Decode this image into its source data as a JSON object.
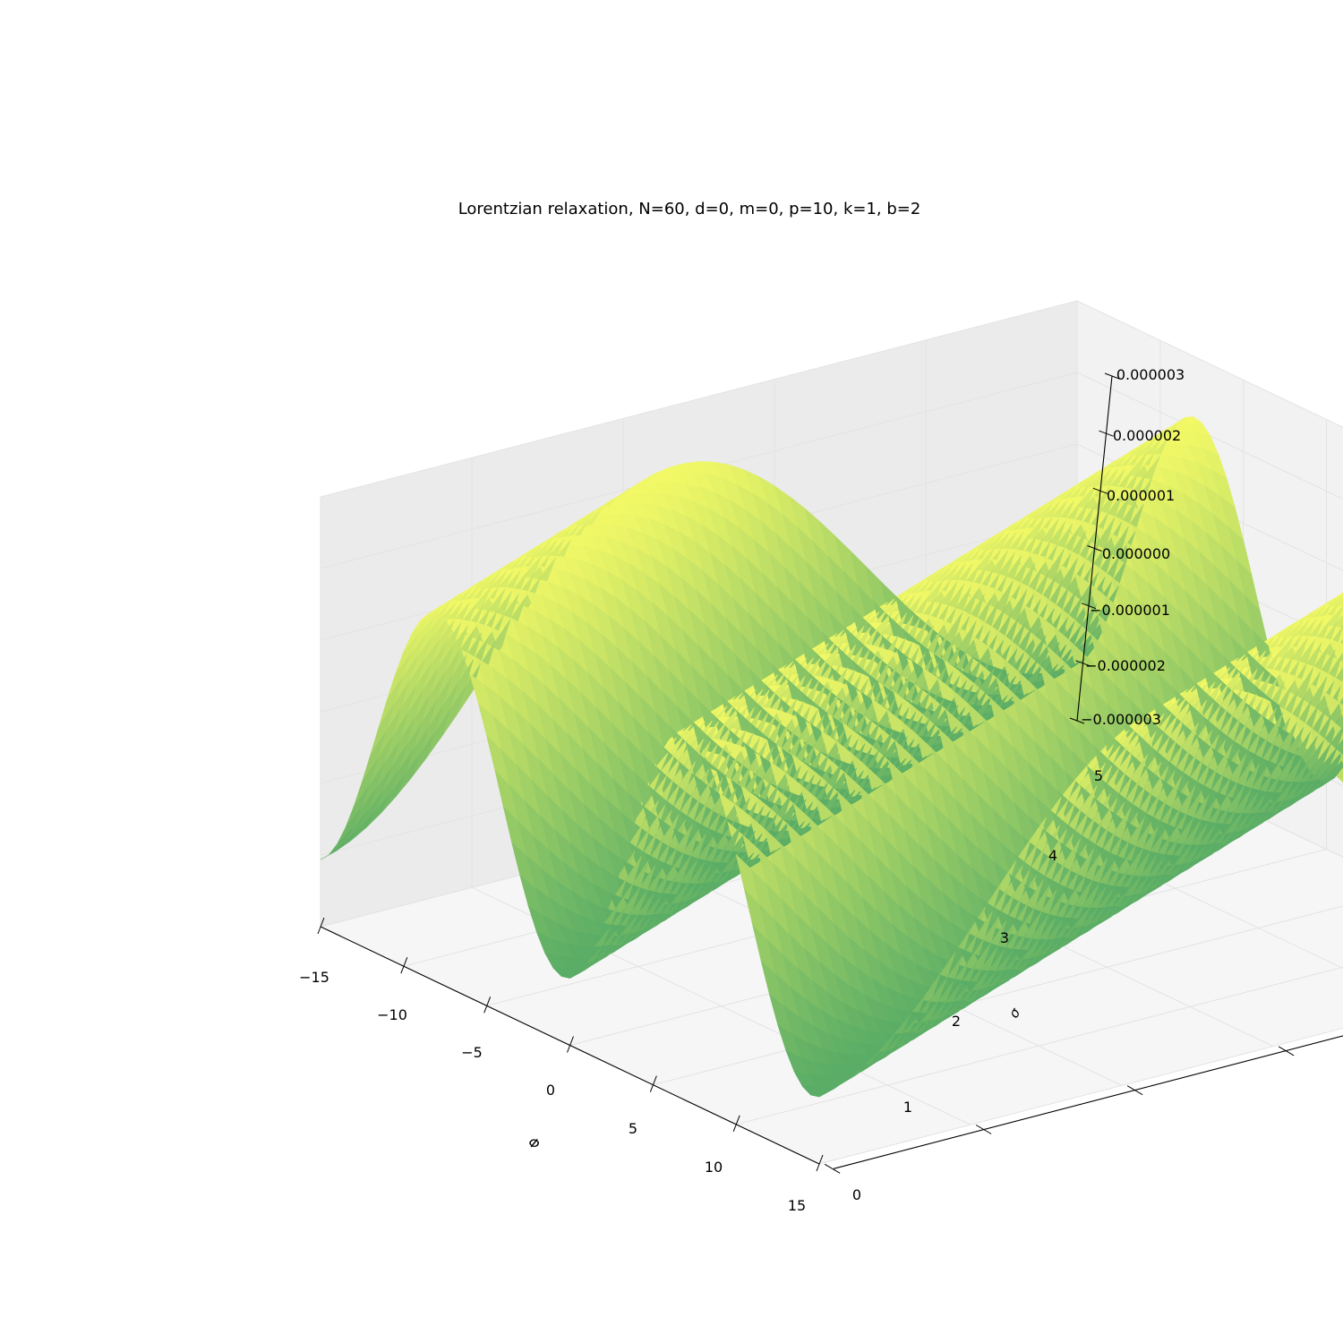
{
  "chart_data": {
    "type": "surface3d",
    "title": "Lorentzian relaxation, N=60, d=0, m=0, p=10, k=1, b=2",
    "xlabel": "Φ",
    "ylabel": "σ",
    "zlabel": "",
    "xlim": [
      -15,
      15
    ],
    "ylim": [
      0,
      5
    ],
    "zlim": [
      -3e-06,
      3e-06
    ],
    "x_ticks": [
      "−15",
      "−10",
      "−5",
      "0",
      "5",
      "10",
      "15"
    ],
    "y_ticks": [
      "0",
      "1",
      "2",
      "3",
      "4",
      "5"
    ],
    "z_ticks": [
      "−0.000003",
      "−0.000002",
      "−0.000001",
      "0.000000",
      "0.000001",
      "0.000002",
      "0.000003"
    ],
    "x_tick_values": [
      -15,
      -10,
      -5,
      0,
      5,
      10,
      15
    ],
    "y_tick_values": [
      0,
      1,
      2,
      3,
      4,
      5
    ],
    "z_tick_values": [
      -3e-06,
      -2e-06,
      -1e-06,
      0,
      1e-06,
      2e-06,
      3e-06
    ],
    "surface": {
      "description": "four parallel sinusoidal ridges along sigma",
      "ridge_count": 4,
      "amplitude": 2.5e-06,
      "colormap": "summer",
      "grid_n": 60
    },
    "pane_colors": [
      "#f2f2f2",
      "#ebebeb",
      "#f6f6f6"
    ],
    "grid": true
  }
}
